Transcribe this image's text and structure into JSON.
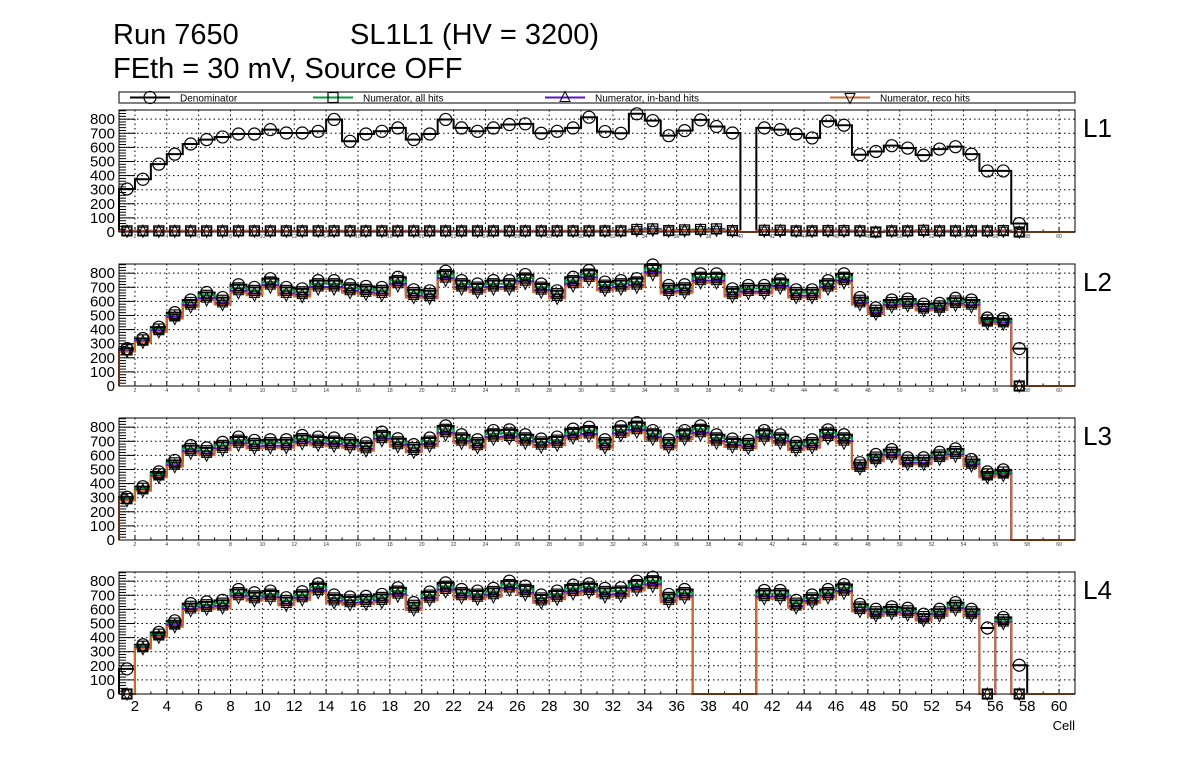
{
  "title": {
    "run": "Run 7650",
    "chamber": "SL1L1 (HV = 3200)",
    "conditions": "FEth = 30 mV, Source OFF"
  },
  "legend": [
    {
      "name": "Denominator",
      "color": "#000000",
      "marker": "open-circle"
    },
    {
      "name": "Numerator, all hits",
      "color": "#00a040",
      "marker": "open-square"
    },
    {
      "name": "Numerator, in-band hits",
      "color": "#6010d0",
      "marker": "open-triangle-up"
    },
    {
      "name": "Numerator, reco hits",
      "color": "#d0692e",
      "marker": "open-triangle-down"
    }
  ],
  "chart_data": [
    {
      "type": "bar",
      "style": "step-histogram",
      "panel_label": "L1",
      "xlabel": "",
      "xlim": [
        1,
        61
      ],
      "ylim": [
        0,
        865
      ],
      "grid": true,
      "legend_placement": "top",
      "xticks": [
        2,
        4,
        6,
        8,
        10,
        12,
        14,
        16,
        18,
        20,
        22,
        24,
        26,
        28,
        30,
        32,
        34,
        36,
        38,
        40,
        42,
        44,
        46,
        48,
        50,
        52,
        54,
        56,
        58,
        60
      ],
      "yticks": [
        0,
        100,
        200,
        300,
        400,
        500,
        600,
        700,
        800
      ],
      "denominator": [
        305,
        374,
        481,
        552,
        624,
        655,
        674,
        695,
        695,
        726,
        702,
        702,
        714,
        798,
        643,
        695,
        714,
        738,
        655,
        695,
        798,
        738,
        714,
        738,
        762,
        767,
        700,
        714,
        738,
        814,
        712,
        700,
        838,
        790,
        683,
        719,
        795,
        748,
        702,
        0,
        738,
        726,
        695,
        667,
        786,
        757,
        548,
        571,
        612,
        595,
        545,
        588,
        605,
        552,
        433,
        433,
        60,
        0,
        0,
        0
      ],
      "series": [
        {
          "name": "Numerator, all hits",
          "values": [
            8,
            8,
            8,
            8,
            8,
            8,
            8,
            8,
            8,
            8,
            8,
            8,
            8,
            8,
            8,
            8,
            8,
            8,
            8,
            8,
            8,
            8,
            8,
            8,
            8,
            8,
            8,
            8,
            8,
            8,
            8,
            8,
            18,
            22,
            10,
            15,
            18,
            22,
            10,
            0,
            12,
            12,
            8,
            8,
            10,
            10,
            8,
            0,
            8,
            8,
            12,
            8,
            8,
            8,
            8,
            10,
            0,
            0,
            0,
            0
          ]
        },
        {
          "name": "Numerator, in-band hits",
          "values": [
            6,
            6,
            6,
            6,
            6,
            6,
            6,
            6,
            6,
            6,
            6,
            6,
            6,
            6,
            6,
            6,
            6,
            6,
            6,
            6,
            6,
            6,
            6,
            6,
            6,
            6,
            6,
            6,
            6,
            6,
            6,
            6,
            16,
            18,
            8,
            12,
            14,
            18,
            8,
            0,
            10,
            10,
            6,
            6,
            8,
            8,
            6,
            0,
            6,
            6,
            10,
            6,
            6,
            6,
            6,
            8,
            0,
            0,
            0,
            0
          ]
        },
        {
          "name": "Numerator, reco hits",
          "values": [
            5,
            5,
            5,
            5,
            5,
            5,
            5,
            5,
            5,
            5,
            5,
            5,
            5,
            5,
            5,
            5,
            5,
            5,
            5,
            5,
            5,
            5,
            5,
            5,
            5,
            5,
            5,
            5,
            5,
            5,
            5,
            5,
            10,
            12,
            6,
            8,
            10,
            12,
            6,
            0,
            6,
            6,
            5,
            5,
            5,
            5,
            5,
            0,
            5,
            5,
            6,
            5,
            5,
            5,
            5,
            5,
            0,
            0,
            0,
            0
          ]
        }
      ]
    },
    {
      "type": "bar",
      "style": "step-histogram",
      "panel_label": "L2",
      "xlabel": "",
      "xlim": [
        1,
        61
      ],
      "ylim": [
        0,
        865
      ],
      "grid": true,
      "xticks": [
        2,
        4,
        6,
        8,
        10,
        12,
        14,
        16,
        18,
        20,
        22,
        24,
        26,
        28,
        30,
        32,
        34,
        36,
        38,
        40,
        42,
        44,
        46,
        48,
        50,
        52,
        54,
        56,
        58,
        60
      ],
      "yticks": [
        0,
        100,
        200,
        300,
        400,
        500,
        600,
        700,
        800
      ],
      "denominator": [
        265,
        337,
        417,
        520,
        610,
        663,
        627,
        718,
        699,
        761,
        699,
        689,
        747,
        747,
        718,
        706,
        699,
        771,
        682,
        675,
        814,
        747,
        723,
        747,
        747,
        790,
        723,
        675,
        771,
        819,
        737,
        747,
        761,
        858,
        713,
        718,
        795,
        795,
        689,
        713,
        713,
        754,
        682,
        682,
        747,
        795,
        627,
        554,
        610,
        617,
        581,
        586,
        622,
        610,
        482,
        477,
        265,
        0,
        0,
        0
      ],
      "series": [
        {
          "name": "Numerator, all hits",
          "ratio_to_denominator": 0.97,
          "zero_cells": [
            57
          ]
        },
        {
          "name": "Numerator, in-band hits",
          "ratio_to_denominator": 0.94,
          "zero_cells": [
            57
          ]
        },
        {
          "name": "Numerator, reco hits",
          "ratio_to_denominator": 0.92,
          "zero_cells": [
            57
          ]
        }
      ]
    },
    {
      "type": "bar",
      "style": "step-histogram",
      "panel_label": "L3",
      "xlabel": "",
      "xlim": [
        1,
        61
      ],
      "ylim": [
        0,
        865
      ],
      "grid": true,
      "xticks": [
        2,
        4,
        6,
        8,
        10,
        12,
        14,
        16,
        18,
        20,
        22,
        24,
        26,
        28,
        30,
        32,
        34,
        36,
        38,
        40,
        42,
        44,
        46,
        48,
        50,
        52,
        54,
        56,
        58,
        60
      ],
      "yticks": [
        0,
        100,
        200,
        300,
        400,
        500,
        600,
        700,
        800
      ],
      "denominator": [
        303,
        378,
        483,
        564,
        669,
        653,
        692,
        730,
        706,
        711,
        711,
        741,
        730,
        723,
        711,
        688,
        765,
        718,
        676,
        723,
        809,
        746,
        711,
        776,
        781,
        746,
        716,
        730,
        786,
        800,
        711,
        804,
        832,
        776,
        711,
        776,
        809,
        746,
        716,
        706,
        776,
        746,
        692,
        711,
        781,
        746,
        548,
        606,
        641,
        583,
        583,
        622,
        646,
        571,
        483,
        497,
        0,
        0,
        0,
        0
      ],
      "series": [
        {
          "name": "Numerator, all hits",
          "ratio_to_denominator": 0.97,
          "zero_cells": []
        },
        {
          "name": "Numerator, in-band hits",
          "ratio_to_denominator": 0.94,
          "zero_cells": []
        },
        {
          "name": "Numerator, reco hits",
          "ratio_to_denominator": 0.92,
          "zero_cells": []
        }
      ]
    },
    {
      "type": "bar",
      "style": "step-histogram",
      "panel_label": "L4",
      "xlabel": "Cell",
      "xlim": [
        1,
        61
      ],
      "ylim": [
        0,
        865
      ],
      "grid": true,
      "xticks": [
        2,
        4,
        6,
        8,
        10,
        12,
        14,
        16,
        18,
        20,
        22,
        24,
        26,
        28,
        30,
        32,
        34,
        36,
        38,
        40,
        42,
        44,
        46,
        48,
        50,
        52,
        54,
        56,
        58,
        60
      ],
      "yticks": [
        0,
        100,
        200,
        300,
        400,
        500,
        600,
        700,
        800
      ],
      "denominator": [
        178,
        349,
        437,
        519,
        641,
        653,
        664,
        741,
        718,
        730,
        683,
        725,
        781,
        702,
        688,
        692,
        706,
        753,
        648,
        723,
        788,
        741,
        730,
        749,
        800,
        765,
        702,
        730,
        772,
        781,
        749,
        753,
        800,
        828,
        706,
        741,
        0,
        0,
        0,
        0,
        734,
        734,
        664,
        702,
        741,
        776,
        636,
        601,
        618,
        608,
        566,
        601,
        648,
        601,
        468,
        543,
        204,
        0,
        0,
        0
      ],
      "series": [
        {
          "name": "Numerator, all hits",
          "ratio_to_denominator": 0.97,
          "zero_cells": [
            1,
            55,
            57
          ]
        },
        {
          "name": "Numerator, in-band hits",
          "ratio_to_denominator": 0.94,
          "zero_cells": [
            1,
            55,
            57
          ]
        },
        {
          "name": "Numerator, reco hits",
          "ratio_to_denominator": 0.92,
          "zero_cells": [
            1,
            55,
            57
          ]
        }
      ]
    }
  ]
}
